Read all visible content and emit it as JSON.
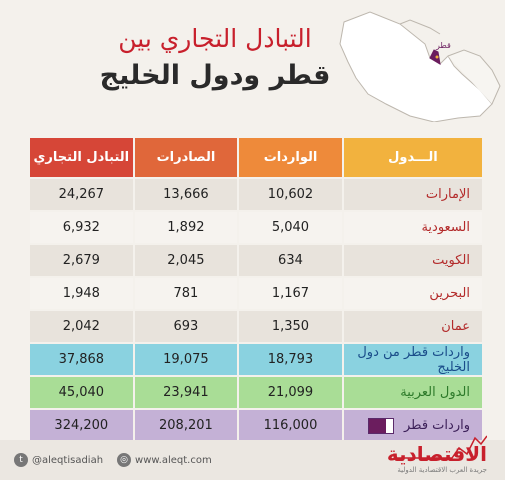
{
  "title": {
    "line1": "التبادل التجاري بين",
    "line2": "قطر ودول الخليج"
  },
  "map": {
    "label": "قطر",
    "highlight_color": "#6b1d5e"
  },
  "table": {
    "headers": {
      "country": "الـــدول",
      "imports": "الواردات",
      "exports": "الصادرات",
      "trade": "التبادل التجاري"
    },
    "rows": [
      {
        "country": "الإمارات",
        "imports": "10,602",
        "exports": "13,666",
        "trade": "24,267"
      },
      {
        "country": "السعودية",
        "imports": "5,040",
        "exports": "1,892",
        "trade": "6,932"
      },
      {
        "country": "الكويت",
        "imports": "634",
        "exports": "2,045",
        "trade": "2,679"
      },
      {
        "country": "البحرين",
        "imports": "1,167",
        "exports": "781",
        "trade": "1,948"
      },
      {
        "country": "عمان",
        "imports": "1,350",
        "exports": "693",
        "trade": "2,042"
      }
    ],
    "gulf_total": {
      "country": "واردات قطر من دول الخليج",
      "imports": "18,793",
      "exports": "19,075",
      "trade": "37,868"
    },
    "arab_total": {
      "country": "الدول العربية",
      "imports": "21,099",
      "exports": "23,941",
      "trade": "45,040"
    },
    "qatar_total": {
      "country": "واردات قطر",
      "imports": "116,000",
      "exports": "208,201",
      "trade": "324,200"
    }
  },
  "footer": {
    "twitter": "@aleqtisadiah",
    "website": "www.aleqt.com",
    "brand": "الاقتصادية",
    "brand_sub": "جريدة العرب الاقتصادية الدولية"
  }
}
